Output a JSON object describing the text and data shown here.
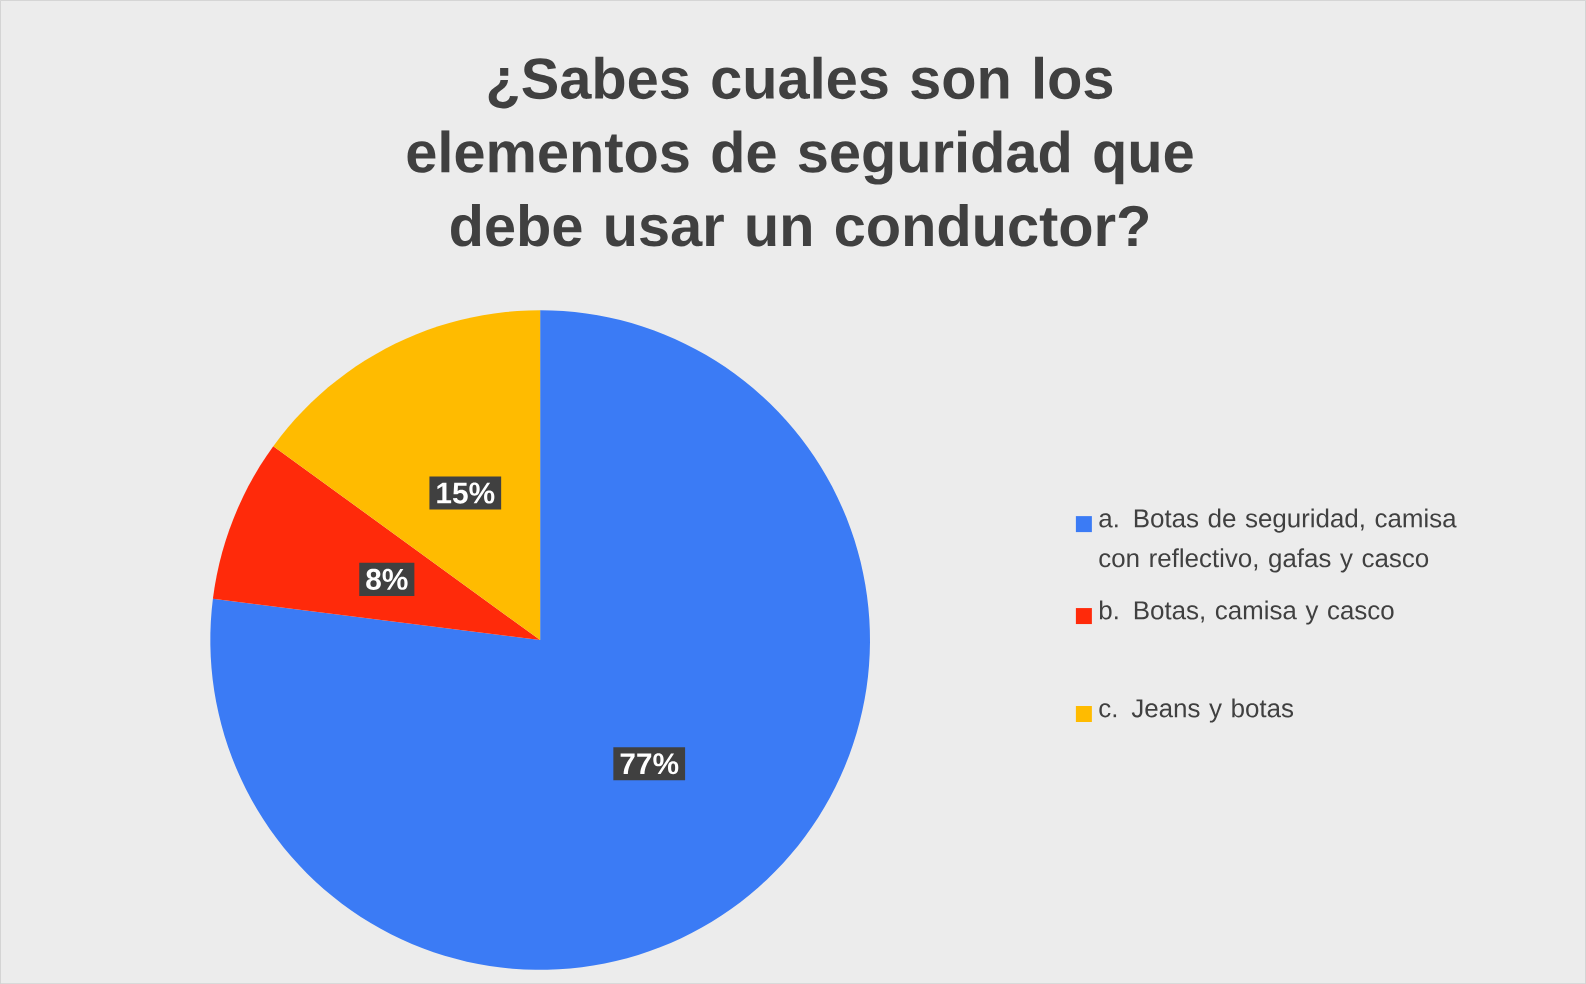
{
  "chart_data": {
    "type": "pie",
    "title": "¿Sabes cuales son los elementos de seguridad que debe usar un conductor?",
    "categories": [
      "a. Botas de seguridad, camisa con reflectivo, gafas y casco",
      "b. Botas, camisa y casco",
      "c.  Jeans y botas"
    ],
    "values": [
      77,
      8,
      15
    ],
    "colors": [
      "#3b7bf5",
      "#ff2a0a",
      "#ffbb00"
    ],
    "value_labels": [
      "77%",
      "8%",
      "15%"
    ],
    "legend": "right"
  }
}
